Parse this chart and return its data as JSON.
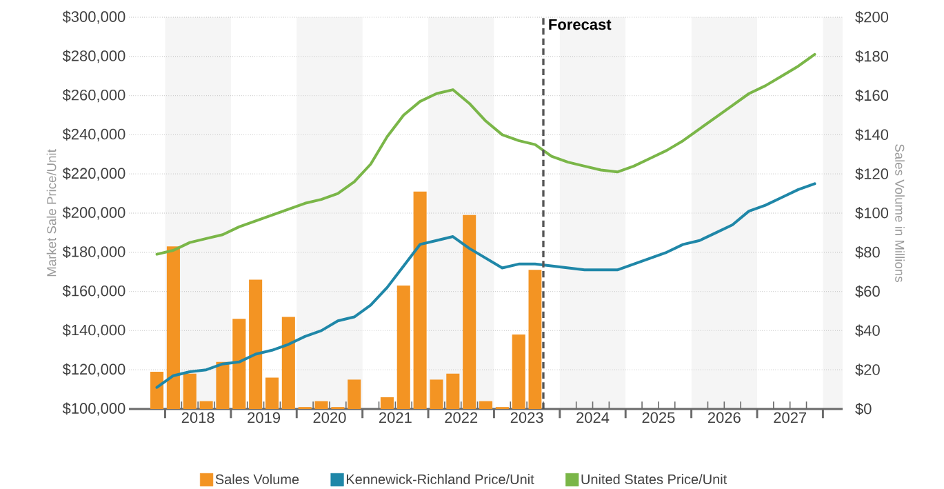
{
  "chart_data": {
    "type": "line",
    "ylabel": "Market Sale Price/Unit",
    "y2label": "Sales Volume in Millions",
    "xlim": [
      2017.45,
      2028.3
    ],
    "xticks": [
      {
        "value": 2018,
        "label": null
      },
      {
        "value": 2019,
        "label": null
      },
      {
        "value": 2020,
        "label": null
      },
      {
        "value": 2021,
        "label": null
      },
      {
        "value": 2022,
        "label": null
      },
      {
        "value": 2023,
        "label": null
      },
      {
        "value": 2024,
        "label": null
      },
      {
        "value": 2025,
        "label": null
      },
      {
        "value": 2026,
        "label": null
      },
      {
        "value": 2027,
        "label": null
      },
      {
        "value": 2028,
        "label": null
      },
      {
        "value": 2018.5,
        "label": "2018"
      },
      {
        "value": 2019.5,
        "label": "2019"
      },
      {
        "value": 2020.5,
        "label": "2020"
      },
      {
        "value": 2021.5,
        "label": "2021"
      },
      {
        "value": 2022.5,
        "label": "2022"
      },
      {
        "value": 2023.5,
        "label": "2023"
      },
      {
        "value": 2024.5,
        "label": "2024"
      },
      {
        "value": 2025.5,
        "label": "2025"
      },
      {
        "value": 2026.5,
        "label": "2026"
      },
      {
        "value": 2027.5,
        "label": "2027"
      }
    ],
    "ylim": [
      100000,
      300000
    ],
    "yticks": [
      {
        "value": 100000,
        "label": "$100,000"
      },
      {
        "value": 120000,
        "label": "$120,000"
      },
      {
        "value": 140000,
        "label": "$140,000"
      },
      {
        "value": 160000,
        "label": "$160,000"
      },
      {
        "value": 180000,
        "label": "$180,000"
      },
      {
        "value": 200000,
        "label": "$200,000"
      },
      {
        "value": 220000,
        "label": "$220,000"
      },
      {
        "value": 240000,
        "label": "$240,000"
      },
      {
        "value": 260000,
        "label": "$260,000"
      },
      {
        "value": 280000,
        "label": "$280,000"
      },
      {
        "value": 300000,
        "label": "$300,000"
      }
    ],
    "y2lim": [
      0,
      200
    ],
    "y2ticks": [
      {
        "value": 0,
        "label": "$0"
      },
      {
        "value": 20,
        "label": "$20"
      },
      {
        "value": 40,
        "label": "$40"
      },
      {
        "value": 60,
        "label": "$60"
      },
      {
        "value": 80,
        "label": "$80"
      },
      {
        "value": 100,
        "label": "$100"
      },
      {
        "value": 120,
        "label": "$120"
      },
      {
        "value": 140,
        "label": "$140"
      },
      {
        "value": 160,
        "label": "$160"
      },
      {
        "value": 180,
        "label": "$180"
      },
      {
        "value": 200,
        "label": "$200"
      }
    ],
    "grid": "y",
    "legend": "bottom",
    "marker": "none",
    "line_style": "solid",
    "ref_lines": [
      {
        "axis": "x",
        "value": 2023.75,
        "label": "Forecast",
        "color": "#555555",
        "line_style": "dashed"
      }
    ],
    "bands": [
      {
        "axis": "x",
        "from": 2018,
        "to": 2019,
        "label": null,
        "color": "#f5f5f5"
      },
      {
        "axis": "x",
        "from": 2020,
        "to": 2021,
        "label": null,
        "color": "#f5f5f5"
      },
      {
        "axis": "x",
        "from": 2022,
        "to": 2023,
        "label": null,
        "color": "#f5f5f5"
      },
      {
        "axis": "x",
        "from": 2024,
        "to": 2025,
        "label": null,
        "color": "#f5f5f5"
      },
      {
        "axis": "x",
        "from": 2026,
        "to": 2027,
        "label": null,
        "color": "#f5f5f5"
      },
      {
        "axis": "x",
        "from": 2028,
        "to": 2028.3,
        "label": null,
        "color": "#f5f5f5"
      }
    ],
    "series": [
      {
        "name": "Sales Volume",
        "type": "bar",
        "axis": "y2",
        "color": "#f39423",
        "x": [
          2017.875,
          2018.125,
          2018.375,
          2018.625,
          2018.875,
          2019.125,
          2019.375,
          2019.625,
          2019.875,
          2020.125,
          2020.375,
          2020.625,
          2020.875,
          2021.125,
          2021.375,
          2021.625,
          2021.875,
          2022.125,
          2022.375,
          2022.625,
          2022.875,
          2023.125,
          2023.375,
          2023.625
        ],
        "values": [
          19,
          83,
          18,
          4,
          24,
          46,
          66,
          16,
          47,
          1,
          4,
          1,
          15,
          0,
          6,
          63,
          111,
          15,
          18,
          99,
          4,
          1,
          38,
          71
        ]
      },
      {
        "name": "Kennewick-Richland Price/Unit",
        "color": "#1f87a8",
        "x": [
          2017.875,
          2018.125,
          2018.375,
          2018.625,
          2018.875,
          2019.125,
          2019.375,
          2019.625,
          2019.875,
          2020.125,
          2020.375,
          2020.625,
          2020.875,
          2021.125,
          2021.375,
          2021.625,
          2021.875,
          2022.125,
          2022.375,
          2022.625,
          2022.875,
          2023.125,
          2023.375,
          2023.625,
          2023.875,
          2024.125,
          2024.375,
          2024.625,
          2024.875,
          2025.125,
          2025.375,
          2025.625,
          2025.875,
          2026.125,
          2026.375,
          2026.625,
          2026.875,
          2027.125,
          2027.375,
          2027.625,
          2027.875
        ],
        "values": [
          111000,
          117000,
          119000,
          120000,
          123000,
          124000,
          128000,
          130000,
          133000,
          137000,
          140000,
          145000,
          147000,
          153000,
          162000,
          173000,
          184000,
          186000,
          188000,
          182000,
          177000,
          172000,
          174000,
          174000,
          173000,
          172000,
          171000,
          171000,
          171000,
          174000,
          177000,
          180000,
          184000,
          186000,
          190000,
          194000,
          201000,
          204000,
          208000,
          212000,
          215000
        ]
      },
      {
        "name": "United States Price/Unit",
        "color": "#7ab648",
        "x": [
          2017.875,
          2018.125,
          2018.375,
          2018.625,
          2018.875,
          2019.125,
          2019.375,
          2019.625,
          2019.875,
          2020.125,
          2020.375,
          2020.625,
          2020.875,
          2021.125,
          2021.375,
          2021.625,
          2021.875,
          2022.125,
          2022.375,
          2022.625,
          2022.875,
          2023.125,
          2023.375,
          2023.625,
          2023.875,
          2024.125,
          2024.375,
          2024.625,
          2024.875,
          2025.125,
          2025.375,
          2025.625,
          2025.875,
          2026.125,
          2026.375,
          2026.625,
          2026.875,
          2027.125,
          2027.375,
          2027.625,
          2027.875
        ],
        "values": [
          179000,
          181000,
          185000,
          187000,
          189000,
          193000,
          196000,
          199000,
          202000,
          205000,
          207000,
          210000,
          216000,
          225000,
          239000,
          250000,
          257000,
          261000,
          263000,
          256000,
          247000,
          240000,
          237000,
          235000,
          229000,
          226000,
          224000,
          222000,
          221000,
          224000,
          228000,
          232000,
          237000,
          243000,
          249000,
          255000,
          261000,
          265000,
          270000,
          275000,
          281000
        ]
      }
    ]
  }
}
